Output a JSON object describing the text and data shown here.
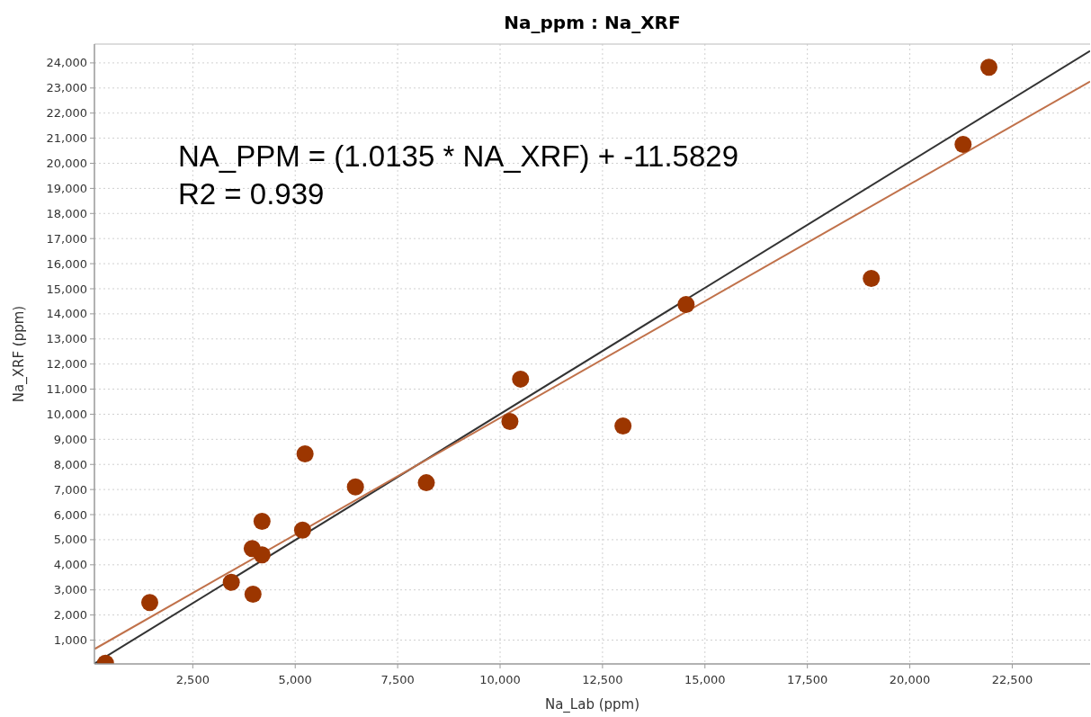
{
  "chart_data": {
    "type": "scatter",
    "title": "Na_ppm : Na_XRF",
    "xlabel": "Na_Lab (ppm)",
    "ylabel": "Na_XRF (ppm)",
    "annotations": [
      "NA_PPM = (1.0135 * NA_XRF) + -11.5829",
      "R2 = 0.939"
    ],
    "xlim": [
      100,
      24400
    ],
    "ylim": [
      50,
      24750
    ],
    "xticks": [
      {
        "value": 2500,
        "label": "2,500"
      },
      {
        "value": 5000,
        "label": "5,000"
      },
      {
        "value": 7500,
        "label": "7,500"
      },
      {
        "value": 10000,
        "label": "10,000"
      },
      {
        "value": 12500,
        "label": "12,500"
      },
      {
        "value": 15000,
        "label": "15,000"
      },
      {
        "value": 17500,
        "label": "17,500"
      },
      {
        "value": 20000,
        "label": "20,000"
      },
      {
        "value": 22500,
        "label": "22,500"
      }
    ],
    "yticks": [
      {
        "value": 1000,
        "label": "1,000"
      },
      {
        "value": 2000,
        "label": "2,000"
      },
      {
        "value": 3000,
        "label": "3,000"
      },
      {
        "value": 4000,
        "label": "4,000"
      },
      {
        "value": 5000,
        "label": "5,000"
      },
      {
        "value": 6000,
        "label": "6,000"
      },
      {
        "value": 7000,
        "label": "7,000"
      },
      {
        "value": 8000,
        "label": "8,000"
      },
      {
        "value": 9000,
        "label": "9,000"
      },
      {
        "value": 10000,
        "label": "10,000"
      },
      {
        "value": 11000,
        "label": "11,000"
      },
      {
        "value": 12000,
        "label": "12,000"
      },
      {
        "value": 13000,
        "label": "13,000"
      },
      {
        "value": 14000,
        "label": "14,000"
      },
      {
        "value": 15000,
        "label": "15,000"
      },
      {
        "value": 16000,
        "label": "16,000"
      },
      {
        "value": 17000,
        "label": "17,000"
      },
      {
        "value": 18000,
        "label": "18,000"
      },
      {
        "value": 19000,
        "label": "19,000"
      },
      {
        "value": 20000,
        "label": "20,000"
      },
      {
        "value": 21000,
        "label": "21,000"
      },
      {
        "value": 22000,
        "label": "22,000"
      },
      {
        "value": 23000,
        "label": "23,000"
      },
      {
        "value": 24000,
        "label": "24,000"
      }
    ],
    "grid": true,
    "series": [
      {
        "type": "line",
        "color": "#333333",
        "x": [
          110,
          24400
        ],
        "values": [
          70,
          24480
        ]
      },
      {
        "type": "line",
        "color": "#c0714a",
        "x": [
          110,
          24400
        ],
        "values": [
          650,
          23260
        ]
      },
      {
        "marker": "circle",
        "color": "#9c3600",
        "x": [
          370,
          1450,
          3440,
          3970,
          3950,
          4190,
          4190,
          5180,
          5240,
          6470,
          8200,
          10240,
          10500,
          13000,
          14540,
          19060,
          21300,
          21930
        ],
        "values": [
          80,
          2500,
          3300,
          2830,
          4650,
          5730,
          4400,
          5380,
          8420,
          7100,
          7270,
          9710,
          11400,
          9530,
          14370,
          15410,
          20750,
          23830
        ]
      }
    ]
  }
}
